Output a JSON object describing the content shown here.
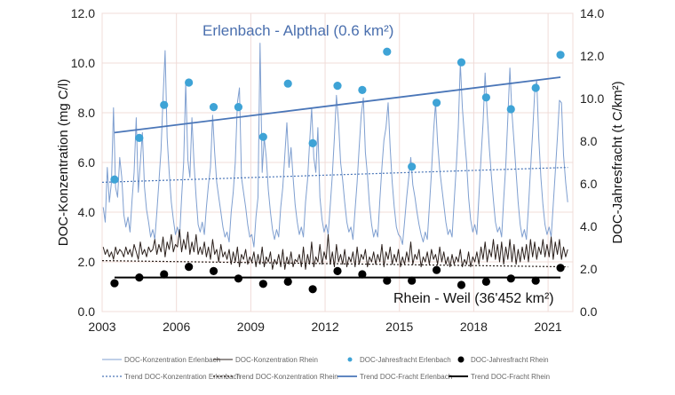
{
  "chart_data": {
    "type": "line",
    "xlim": [
      2003,
      2022
    ],
    "x_ticks": [
      "2003",
      "2006",
      "2009",
      "2012",
      "2015",
      "2018",
      "2021"
    ],
    "y_left": {
      "label": "DOC-Konzentration (mg C/l)",
      "range": [
        0,
        12
      ],
      "ticks": [
        "0.0",
        "2.0",
        "4.0",
        "6.0",
        "8.0",
        "10.0",
        "12.0"
      ]
    },
    "y_right": {
      "label": "DOC-Jahresfracht (t C/km²)",
      "range": [
        0,
        14
      ],
      "ticks": [
        "0.0",
        "2.0",
        "4.0",
        "6.0",
        "8.0",
        "10.0",
        "12.0",
        "14.0"
      ]
    },
    "grid": true,
    "legend_placement": "bottom",
    "annotations": {
      "erlenbach": "Erlenbach - Alpthal (0.6 km²)",
      "rhein": "Rhein - Weil (36'452 km²)"
    },
    "colors": {
      "erlenbach_line": "#7f9fd0",
      "erlenbach_trend": "#4a76b8",
      "erlenbach_dot": "#3ea3d6",
      "rhein": "#2b201c",
      "grid": "#f0dcd8"
    },
    "concentration_start_year": 2003,
    "series": [
      {
        "name": "DOC-Konzentration Erlenbach",
        "axis": "left",
        "kind": "line",
        "monthly": [
          4.2,
          3.6,
          5.8,
          4.4,
          5.2,
          8.2,
          5.0,
          4.6,
          6.2,
          5.4,
          3.9,
          3.4,
          3.8,
          3.2,
          4.5,
          5.6,
          7.8,
          4.8,
          6.0,
          7.2,
          5.0,
          4.1,
          3.6,
          3.0,
          3.3,
          2.9,
          4.0,
          5.2,
          6.5,
          8.6,
          10.5,
          7.0,
          5.6,
          4.4,
          3.7,
          3.1,
          3.4,
          3.0,
          4.6,
          6.0,
          9.2,
          6.1,
          5.4,
          7.8,
          6.0,
          4.6,
          3.5,
          3.2,
          3.6,
          3.1,
          4.2,
          5.1,
          5.8,
          7.9,
          6.4,
          5.2,
          4.6,
          4.0,
          3.4,
          3.0,
          3.2,
          2.8,
          4.0,
          4.8,
          6.0,
          8.4,
          9.0,
          5.4,
          4.8,
          4.2,
          3.5,
          3.0,
          3.1,
          2.6,
          3.8,
          4.6,
          10.8,
          5.6,
          7.0,
          6.2,
          4.9,
          4.0,
          3.3,
          2.9,
          3.3,
          3.0,
          4.2,
          5.0,
          6.3,
          7.6,
          5.8,
          6.6,
          5.4,
          4.3,
          3.6,
          3.1,
          3.4,
          3.0,
          4.4,
          5.3,
          6.8,
          8.2,
          6.2,
          5.6,
          7.4,
          4.6,
          3.7,
          3.2,
          3.5,
          3.1,
          4.3,
          5.5,
          7.0,
          8.7,
          7.6,
          6.0,
          5.3,
          4.4,
          3.6,
          3.2,
          3.4,
          2.9,
          4.1,
          5.2,
          6.6,
          7.9,
          8.6,
          6.4,
          5.5,
          4.3,
          3.5,
          3.0,
          3.3,
          3.0,
          4.5,
          5.8,
          6.9,
          7.4,
          8.4,
          6.6,
          5.2,
          4.2,
          3.4,
          3.1,
          3.0,
          2.7,
          3.6,
          4.6,
          5.4,
          6.2,
          5.1,
          4.6,
          4.0,
          3.5,
          3.1,
          2.8,
          3.2,
          2.9,
          4.2,
          5.6,
          7.2,
          8.4,
          6.8,
          5.7,
          5.0,
          4.3,
          3.6,
          3.1,
          3.3,
          3.0,
          4.4,
          5.8,
          7.4,
          10.0,
          8.2,
          7.0,
          6.0,
          4.6,
          3.7,
          3.2,
          3.5,
          3.1,
          4.6,
          6.2,
          7.6,
          9.6,
          8.0,
          6.6,
          5.5,
          4.5,
          3.6,
          3.2,
          3.4,
          3.0,
          4.5,
          5.9,
          7.8,
          9.8,
          8.0,
          6.8,
          5.6,
          4.4,
          3.5,
          3.0,
          3.3,
          2.9,
          4.2,
          5.7,
          7.2,
          8.8,
          9.3,
          7.0,
          5.4,
          4.3,
          3.5,
          3.1,
          3.4,
          3.0,
          4.3,
          5.6,
          7.0,
          8.5,
          8.4,
          6.3,
          5.2,
          4.4
        ]
      },
      {
        "name": "DOC-Konzentration Rhein",
        "axis": "left",
        "kind": "line",
        "monthly": [
          2.6,
          2.3,
          2.5,
          2.2,
          2.4,
          2.1,
          2.6,
          2.3,
          2.5,
          2.4,
          2.2,
          2.6,
          2.3,
          2.5,
          2.2,
          2.7,
          2.4,
          2.1,
          2.8,
          2.3,
          2.5,
          2.2,
          2.6,
          2.4,
          2.5,
          2.9,
          2.3,
          2.7,
          2.4,
          3.0,
          2.2,
          2.8,
          2.5,
          3.1,
          2.4,
          2.7,
          2.6,
          3.3,
          2.4,
          2.9,
          2.5,
          3.2,
          2.3,
          2.8,
          2.4,
          3.1,
          2.3,
          2.6,
          2.3,
          2.8,
          2.2,
          2.6,
          2.1,
          2.9,
          2.3,
          2.5,
          2.0,
          2.7,
          2.2,
          2.4,
          2.1,
          2.5,
          1.9,
          2.4,
          2.0,
          2.6,
          1.8,
          2.3,
          2.1,
          2.5,
          1.9,
          2.2,
          2.0,
          2.4,
          1.8,
          2.3,
          1.9,
          2.6,
          1.8,
          2.2,
          2.0,
          2.4,
          1.7,
          2.1,
          1.9,
          2.3,
          1.8,
          2.5,
          1.7,
          2.2,
          1.9,
          2.4,
          1.8,
          2.1,
          2.0,
          2.3,
          1.8,
          2.6,
          1.7,
          2.3,
          1.9,
          2.8,
          1.8,
          2.2,
          2.0,
          2.7,
          1.9,
          2.4,
          2.1,
          3.1,
          1.9,
          2.4,
          1.8,
          2.7,
          2.0,
          2.3,
          1.9,
          2.5,
          1.8,
          2.2,
          2.0,
          2.4,
          1.8,
          2.6,
          1.9,
          2.3,
          2.1,
          2.5,
          1.8,
          2.2,
          2.0,
          2.4,
          1.9,
          2.3,
          2.0,
          2.7,
          1.8,
          2.4,
          2.1,
          2.6,
          1.9,
          2.3,
          2.0,
          2.5,
          1.8,
          2.2,
          1.9,
          2.4,
          2.0,
          2.8,
          1.9,
          2.3,
          2.1,
          2.5,
          1.8,
          2.2,
          2.0,
          2.4,
          1.9,
          2.5,
          2.1,
          2.3,
          1.9,
          2.6,
          2.0,
          2.4,
          1.9,
          2.2,
          1.8,
          2.3,
          1.9,
          2.2,
          2.0,
          2.5,
          1.8,
          2.1,
          1.9,
          2.4,
          1.8,
          2.2,
          2.0,
          2.4,
          1.9,
          2.6,
          2.1,
          2.8,
          2.0,
          2.5,
          2.2,
          2.9,
          2.1,
          2.7,
          2.0,
          2.8,
          1.9,
          2.6,
          2.1,
          2.9,
          2.0,
          2.7,
          1.9,
          2.5,
          2.0,
          2.6,
          2.1,
          2.7,
          2.0,
          2.9,
          2.2,
          2.8,
          2.1,
          2.6,
          2.3,
          2.9,
          2.2,
          2.7,
          2.2,
          3.0,
          2.1,
          2.8,
          2.3,
          2.9,
          2.1,
          2.6,
          2.2,
          2.5
        ]
      },
      {
        "name": "DOC-Jahresfracht Erlenbach",
        "axis": "right",
        "kind": "dots",
        "x": [
          2003.5,
          2004.5,
          2005.5,
          2006.5,
          2007.5,
          2008.5,
          2009.5,
          2010.5,
          2011.5,
          2012.5,
          2013.5,
          2014.5,
          2015.5,
          2016.5,
          2017.5,
          2018.5,
          2019.5,
          2020.5,
          2021.5
        ],
        "values": [
          6.2,
          8.15,
          9.7,
          10.75,
          9.6,
          9.6,
          8.2,
          10.7,
          7.9,
          10.6,
          10.4,
          12.2,
          6.8,
          9.8,
          11.7,
          10.05,
          9.5,
          10.5,
          12.05
        ]
      },
      {
        "name": "DOC-Jahresfracht Rhein",
        "axis": "right",
        "kind": "dots",
        "x": [
          2003.5,
          2004.5,
          2005.5,
          2006.5,
          2007.5,
          2008.5,
          2009.5,
          2010.5,
          2011.5,
          2012.5,
          2013.5,
          2014.5,
          2015.5,
          2016.5,
          2017.5,
          2018.5,
          2019.5,
          2020.5,
          2021.5
        ],
        "values": [
          1.33,
          1.6,
          1.75,
          2.1,
          1.9,
          1.55,
          1.3,
          1.4,
          1.05,
          1.9,
          1.75,
          1.45,
          1.45,
          1.95,
          1.25,
          1.4,
          1.55,
          1.45,
          2.05
        ]
      },
      {
        "name": "Trend DOC-Konzentration Erlenbach",
        "axis": "left",
        "kind": "dotted-trend",
        "x": [
          2003,
          2021.8
        ],
        "values": [
          5.2,
          5.8
        ]
      },
      {
        "name": "Trend DOC-Konzentration Rhein",
        "axis": "left",
        "kind": "dotted-trend",
        "x": [
          2003,
          2021.8
        ],
        "values": [
          2.05,
          1.8
        ]
      },
      {
        "name": "Trend DOC-Fracht Erlenbach",
        "axis": "right",
        "kind": "trend",
        "x": [
          2003.5,
          2021.5
        ],
        "values": [
          8.4,
          11.0
        ]
      },
      {
        "name": "Trend DOC-Fracht Rhein",
        "axis": "right",
        "kind": "trend",
        "x": [
          2003.5,
          2021.5
        ],
        "values": [
          1.6,
          1.6
        ]
      }
    ]
  }
}
